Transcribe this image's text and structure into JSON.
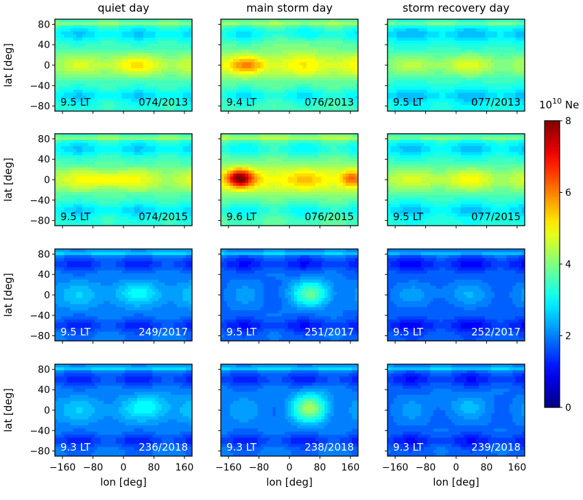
{
  "chart_data": {
    "type": "heatmap",
    "column_titles": [
      "quiet day",
      "main storm day",
      "storm recovery day"
    ],
    "ylabel": "lat [deg]",
    "xlabel": "lon [deg]",
    "x_ticks": [
      "−160",
      "−80",
      "0",
      "80",
      "160"
    ],
    "x_tick_values": [
      -160,
      -80,
      0,
      80,
      160
    ],
    "y_ticks": [
      "80",
      "40",
      "0",
      "−40",
      "−80"
    ],
    "y_tick_values": [
      80,
      40,
      0,
      -40,
      -80
    ],
    "xlim": [
      -180,
      180
    ],
    "ylim": [
      -90,
      90
    ],
    "colorbar": {
      "label_base": "10",
      "label_exp": "10",
      "label_unit": " Ne",
      "ticks": [
        "0",
        "2",
        "4",
        "6",
        "8"
      ],
      "tick_values": [
        0,
        2,
        4,
        6,
        8
      ],
      "range": [
        0,
        8
      ],
      "colormap": "jet"
    },
    "panels": [
      [
        {
          "lt": "9.5 LT",
          "date": "074/2013",
          "label_color": "#000000",
          "base": 3.3,
          "peak": 4.4,
          "blobs": [
            {
              "lon": 30,
              "lat": 0,
              "amp": 0.6,
              "slon": 90,
              "slat": 18
            }
          ]
        },
        {
          "lt": "9.4 LT",
          "date": "076/2013",
          "label_color": "#000000",
          "base": 3.5,
          "peak": 4.9,
          "blobs": [
            {
              "lon": -110,
              "lat": 0,
              "amp": 0.9,
              "slon": 40,
              "slat": 14
            },
            {
              "lon": 20,
              "lat": 45,
              "amp": 0.4,
              "slon": 60,
              "slat": 20
            }
          ]
        },
        {
          "lt": "9.5 LT",
          "date": "077/2013",
          "label_color": "#000000",
          "base": 3.1,
          "peak": 4.2,
          "blobs": [
            {
              "lon": 20,
              "lat": 0,
              "amp": 0.4,
              "slon": 80,
              "slat": 18
            }
          ]
        }
      ],
      [
        {
          "lt": "9.5 LT",
          "date": "074/2015",
          "label_color": "#000000",
          "base": 3.3,
          "peak": 4.6,
          "blobs": [
            {
              "lon": -40,
              "lat": 0,
              "amp": 0.6,
              "slon": 50,
              "slat": 16
            }
          ]
        },
        {
          "lt": "9.6 LT",
          "date": "076/2015",
          "label_color": "#000000",
          "base": 3.6,
          "peak": 5.2,
          "blobs": [
            {
              "lon": -130,
              "lat": 3,
              "amp": 2.9,
              "slon": 30,
              "slat": 16
            },
            {
              "lon": 160,
              "lat": 3,
              "amp": 1.1,
              "slon": 22,
              "slat": 13
            }
          ]
        },
        {
          "lt": "9.5 LT",
          "date": "077/2015",
          "label_color": "#000000",
          "base": 3.2,
          "peak": 4.5,
          "blobs": [
            {
              "lon": 20,
              "lat": 0,
              "amp": 0.3,
              "slon": 80,
              "slat": 18
            }
          ]
        }
      ],
      [
        {
          "lt": "9.5 LT",
          "date": "249/2017",
          "label_color": "#ffffff",
          "base": 1.9,
          "peak": 2.4,
          "blobs": [
            {
              "lon": 40,
              "lat": 5,
              "amp": 0.4,
              "slon": 60,
              "slat": 20
            }
          ]
        },
        {
          "lt": "9.5 LT",
          "date": "251/2017",
          "label_color": "#ffffff",
          "base": 1.8,
          "peak": 2.0,
          "blobs": [
            {
              "lon": 60,
              "lat": 3,
              "amp": 1.6,
              "slon": 50,
              "slat": 26
            }
          ]
        },
        {
          "lt": "9.5 LT",
          "date": "252/2017",
          "label_color": "#ffffff",
          "base": 1.7,
          "peak": 2.0,
          "blobs": [
            {
              "lon": 0,
              "lat": 5,
              "amp": 0.2,
              "slon": 80,
              "slat": 20
            }
          ]
        }
      ],
      [
        {
          "lt": "9.3 LT",
          "date": "236/2018",
          "label_color": "#ffffff",
          "base": 1.9,
          "peak": 2.4,
          "blobs": [
            {
              "lon": 70,
              "lat": 10,
              "amp": 0.6,
              "slon": 55,
              "slat": 24
            }
          ]
        },
        {
          "lt": "9.3 LT",
          "date": "238/2018",
          "label_color": "#ffffff",
          "base": 1.9,
          "peak": 2.1,
          "blobs": [
            {
              "lon": 55,
              "lat": 5,
              "amp": 2.0,
              "slon": 45,
              "slat": 28
            }
          ]
        },
        {
          "lt": "9.3 LT",
          "date": "239/2018",
          "label_color": "#ffffff",
          "base": 1.8,
          "peak": 2.0,
          "blobs": [
            {
              "lon": 20,
              "lat": 10,
              "amp": 0.3,
              "slon": 70,
              "slat": 20
            }
          ]
        }
      ]
    ]
  }
}
